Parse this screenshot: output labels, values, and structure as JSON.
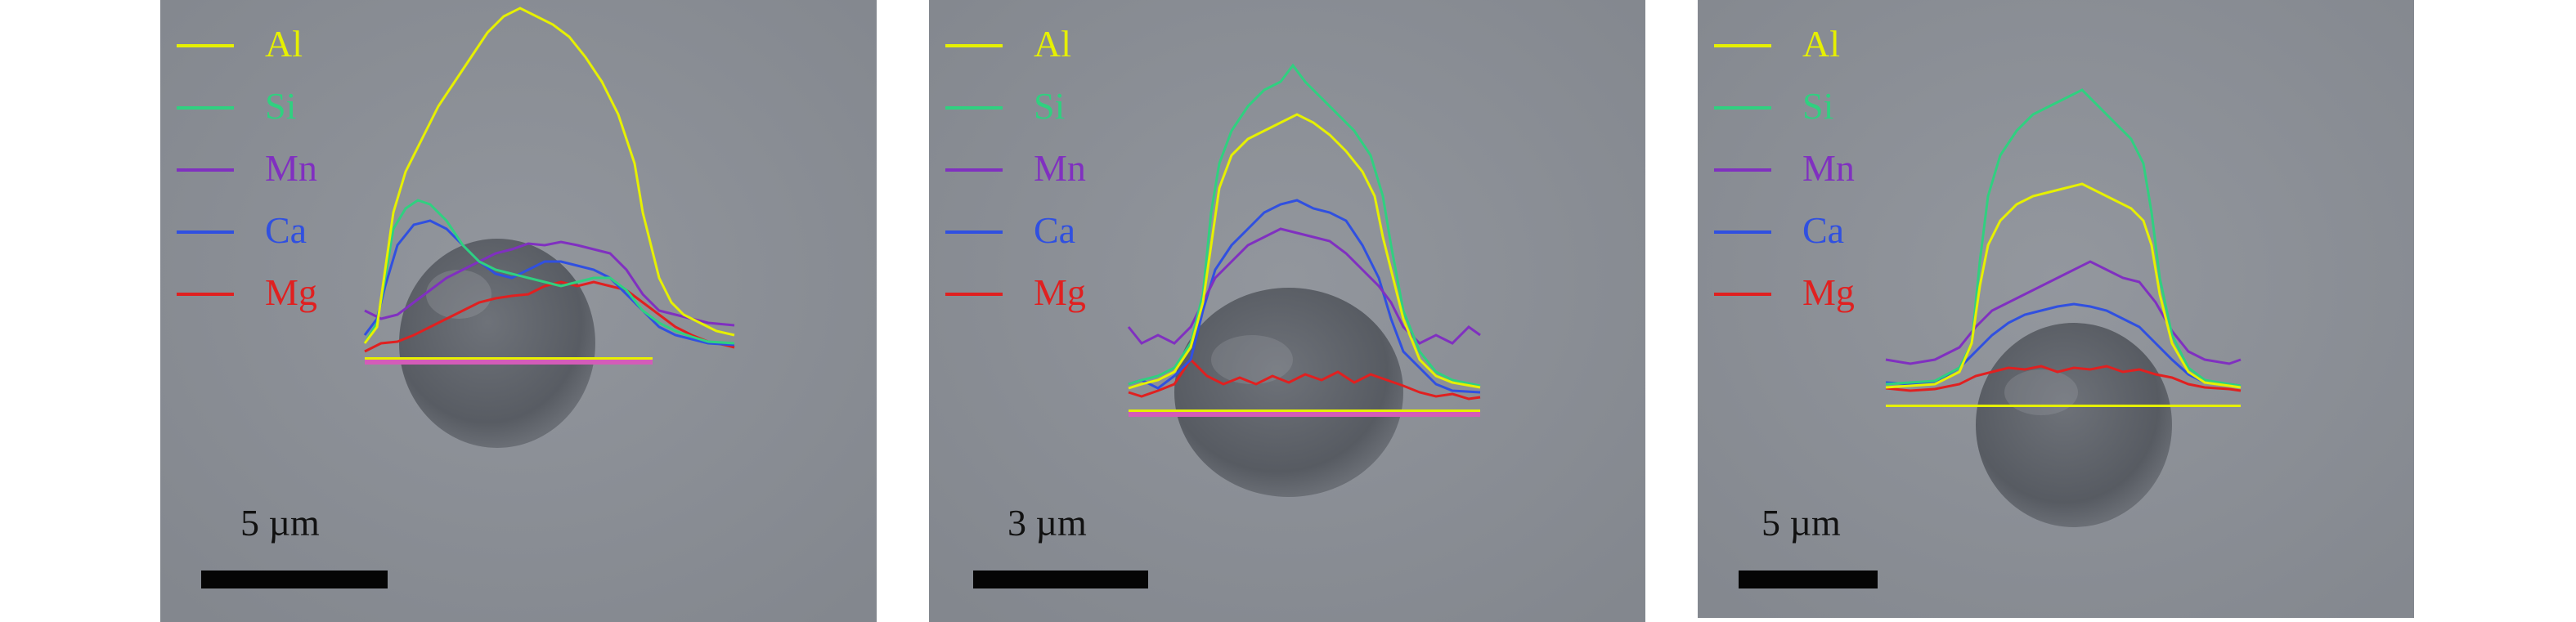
{
  "legend": [
    {
      "label": "Al",
      "color": "#e6f000"
    },
    {
      "label": "Si",
      "color": "#30d080"
    },
    {
      "label": "Mn",
      "color": "#8030c0"
    },
    {
      "label": "Ca",
      "color": "#3050e0"
    },
    {
      "label": "Mg",
      "color": "#e02020"
    }
  ],
  "panels": [
    {
      "scale_label": "5 µm"
    },
    {
      "scale_label": "3 µm"
    },
    {
      "scale_label": "5 µm"
    }
  ]
}
